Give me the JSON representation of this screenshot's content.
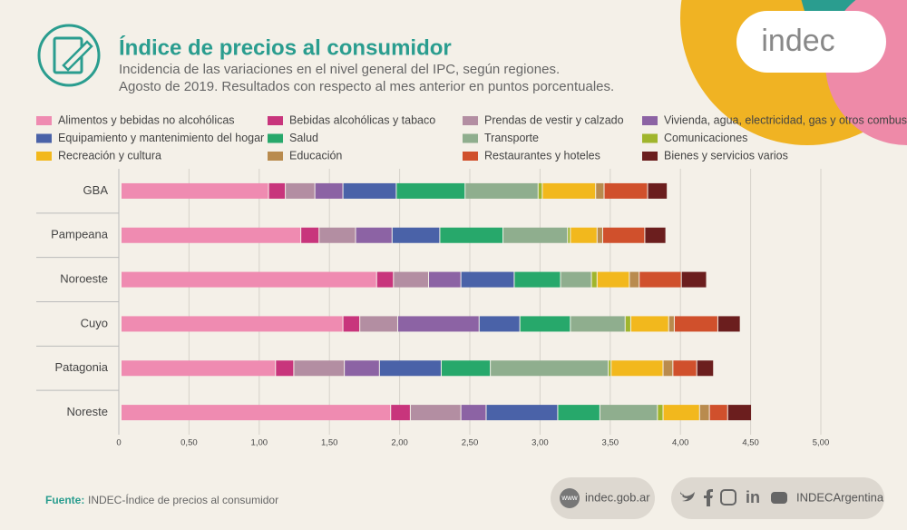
{
  "logo": "indec",
  "source_label": "Fuente:",
  "source": "INDEC-Índice de precios al consumidor",
  "web_icon": "www",
  "website": "indec.gob.ar",
  "social": "INDECArgentina",
  "chart_data": {
    "type": "stacked-barh",
    "title": "Índice de precios al consumidor",
    "subtitle": [
      "Incidencia de las variaciones en el nivel general del IPC, según regiones.",
      "Agosto de 2019. Resultados con respecto al mes anterior en puntos porcentuales."
    ],
    "categories": [
      "GBA",
      "Pampeana",
      "Noroeste",
      "Cuyo",
      "Patagonia",
      "Noreste"
    ],
    "xlim": [
      0,
      5
    ],
    "xticks": [
      0,
      {
        "value": 0.5,
        "label": "0,50"
      },
      {
        "value": 1,
        "label": "1,00"
      },
      {
        "value": 1.5,
        "label": "1,50"
      },
      {
        "value": 2,
        "label": "2,00"
      },
      {
        "value": 2.5,
        "label": "2,50"
      },
      {
        "value": 3,
        "label": "3,00"
      },
      {
        "value": 3.5,
        "label": "3,50"
      },
      {
        "value": 4,
        "label": "4,00"
      },
      {
        "value": 4.5,
        "label": "4,50"
      },
      {
        "value": 5,
        "label": "5,00"
      }
    ],
    "grid": true,
    "series": [
      {
        "name": "Alimentos y bebidas no alcohólicas",
        "color": "#ef8bb1",
        "values": [
          1.05,
          1.28,
          1.82,
          1.58,
          1.1,
          1.92
        ]
      },
      {
        "name": "Bebidas alcohólicas y tabaco",
        "color": "#c8357c",
        "values": [
          0.12,
          0.13,
          0.12,
          0.12,
          0.13,
          0.14
        ]
      },
      {
        "name": "Prendas de vestir y calzado",
        "color": "#b38ea2",
        "values": [
          0.21,
          0.26,
          0.25,
          0.27,
          0.36,
          0.36
        ]
      },
      {
        "name": "Vivienda, agua, electricidad, gas y otros combustibles",
        "color": "#8c63a4",
        "values": [
          0.2,
          0.26,
          0.23,
          0.58,
          0.25,
          0.18
        ]
      },
      {
        "name": "Equipamiento y mantenimiento del hogar",
        "color": "#4a62a8",
        "values": [
          0.38,
          0.34,
          0.38,
          0.29,
          0.44,
          0.51
        ]
      },
      {
        "name": "Salud",
        "color": "#27a86b",
        "values": [
          0.49,
          0.45,
          0.33,
          0.36,
          0.35,
          0.3
        ]
      },
      {
        "name": "Transporte",
        "color": "#8fae8e",
        "values": [
          0.52,
          0.46,
          0.22,
          0.39,
          0.84,
          0.41
        ]
      },
      {
        "name": "Comunicaciones",
        "color": "#a0b52c",
        "values": [
          0.03,
          0.02,
          0.04,
          0.04,
          0.02,
          0.04
        ]
      },
      {
        "name": "Recreación y cultura",
        "color": "#f2b81d",
        "values": [
          0.38,
          0.19,
          0.23,
          0.27,
          0.37,
          0.26
        ]
      },
      {
        "name": "Educación",
        "color": "#b98b4e",
        "values": [
          0.06,
          0.04,
          0.07,
          0.04,
          0.07,
          0.07
        ]
      },
      {
        "name": "Restaurantes y hoteles",
        "color": "#d0502c",
        "values": [
          0.31,
          0.3,
          0.3,
          0.31,
          0.17,
          0.13
        ]
      },
      {
        "name": "Bienes y servicios varios",
        "color": "#6b1e1e",
        "values": [
          0.14,
          0.15,
          0.18,
          0.16,
          0.12,
          0.17
        ]
      }
    ]
  }
}
